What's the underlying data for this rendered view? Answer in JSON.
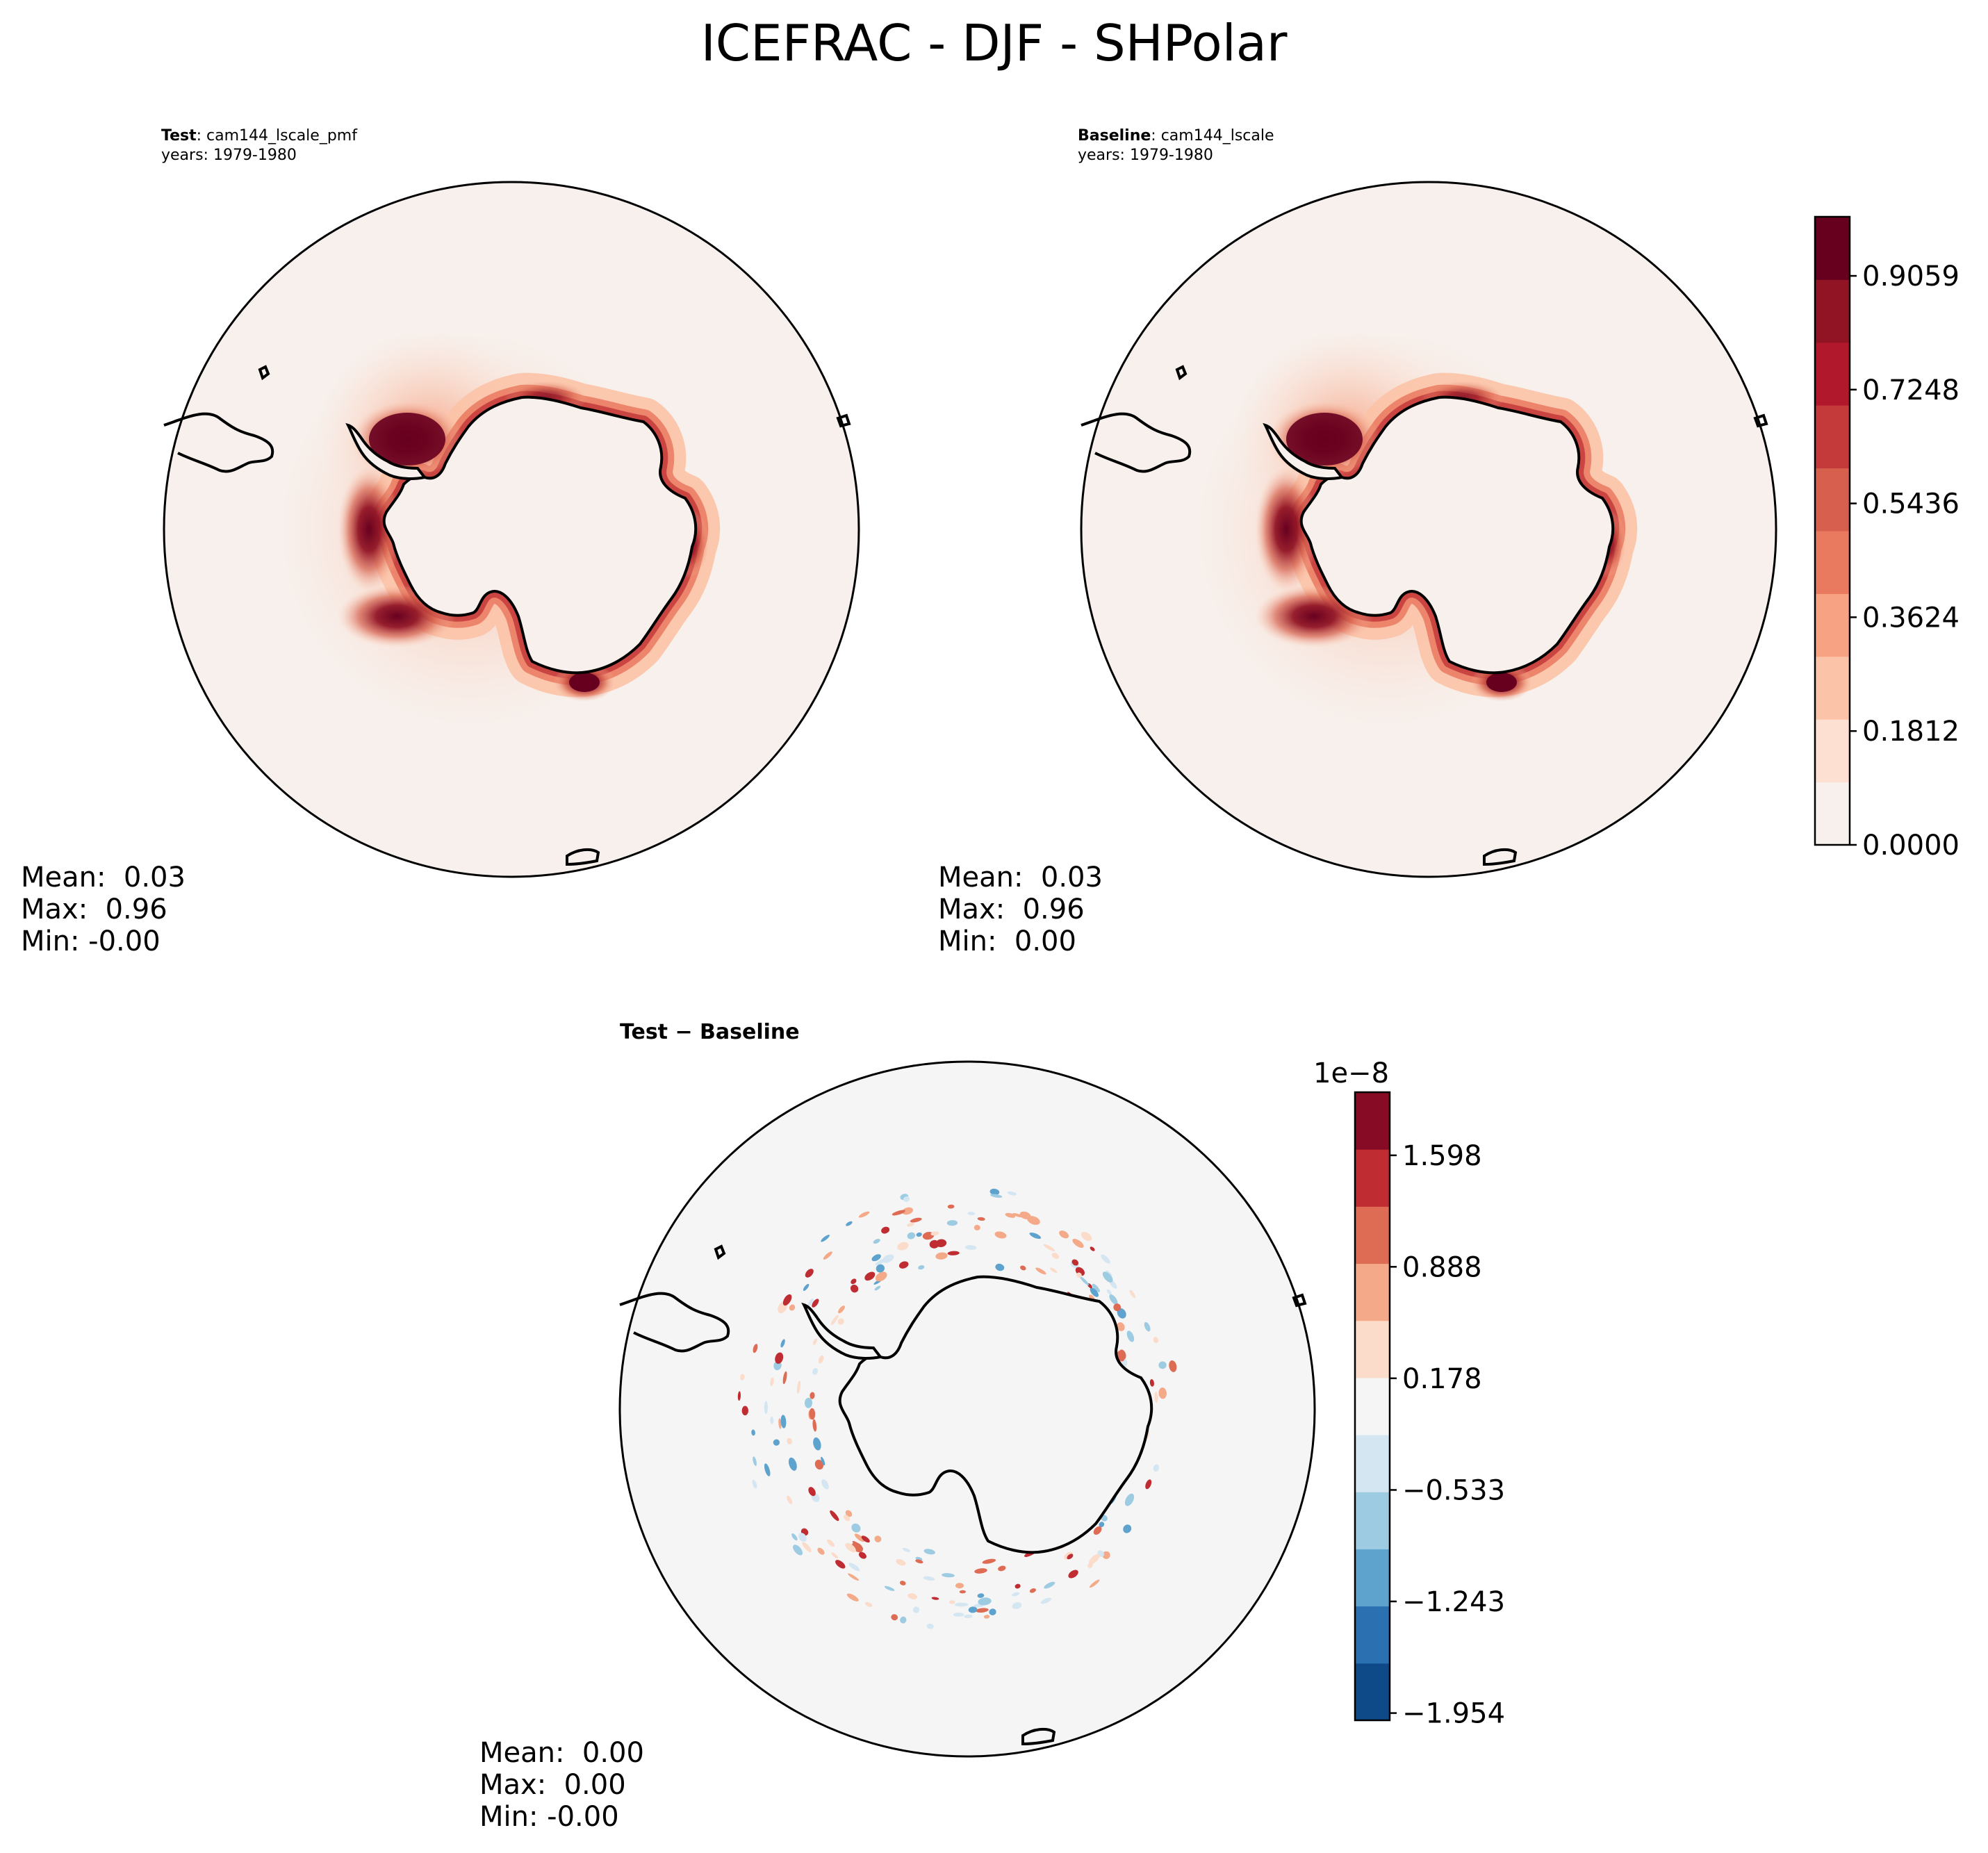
{
  "figure": {
    "title": "ICEFRAC - DJF - SHPolar"
  },
  "panels": {
    "test": {
      "label": "Test",
      "case": "cam144_lscale_pmf",
      "years": "years: 1979-1980",
      "stats": {
        "mean": "Mean:  0.03",
        "max": "Max:  0.96",
        "min": "Min: -0.00"
      }
    },
    "baseline": {
      "label": "Baseline",
      "case": "cam144_lscale",
      "years": "years: 1979-1980",
      "stats": {
        "mean": "Mean:  0.03",
        "max": "Max:  0.96",
        "min": "Min:  0.00"
      }
    },
    "diff": {
      "title": "Test − Baseline",
      "stats": {
        "mean": "Mean:  0.00",
        "max": "Max:  0.00",
        "min": "Min: -0.00"
      }
    }
  },
  "chart_data": [
    {
      "type": "contourf",
      "panel": "Test",
      "projection": "south polar stereographic",
      "colormap": "Reds",
      "color_levels": [
        "#f7f0ec",
        "#fde0d2",
        "#fbc3a7",
        "#f6a283",
        "#e9795f",
        "#d6604d",
        "#c43a3b",
        "#b2182b",
        "#911425",
        "#67001f"
      ],
      "colorbar_ticks": [
        "0.0000",
        "0.1812",
        "0.3624",
        "0.5436",
        "0.7248",
        "0.9059"
      ],
      "range": [
        0,
        1.0
      ]
    },
    {
      "type": "contourf",
      "panel": "Baseline",
      "projection": "south polar stereographic",
      "colormap": "Reds",
      "colorbar_ticks": [
        "0.0000",
        "0.1812",
        "0.3624",
        "0.5436",
        "0.7248",
        "0.9059"
      ],
      "range": [
        0,
        1.0
      ]
    },
    {
      "type": "contourf",
      "panel": "Test − Baseline",
      "projection": "south polar stereographic",
      "colormap": "RdBu_r",
      "scale_label": "1e−8",
      "color_levels": [
        "#0d4a87",
        "#2b70b0",
        "#5ea2ce",
        "#9dcce2",
        "#d4e6f1",
        "#f5f5f5",
        "#fbdbc9",
        "#f4aa88",
        "#de6c55",
        "#bf2c32",
        "#870b25"
      ],
      "colorbar_ticks": [
        "−1.954",
        "−1.243",
        "−0.533",
        "0.178",
        "0.888",
        "1.598"
      ],
      "range": [
        -2.0,
        2.0
      ]
    }
  ]
}
